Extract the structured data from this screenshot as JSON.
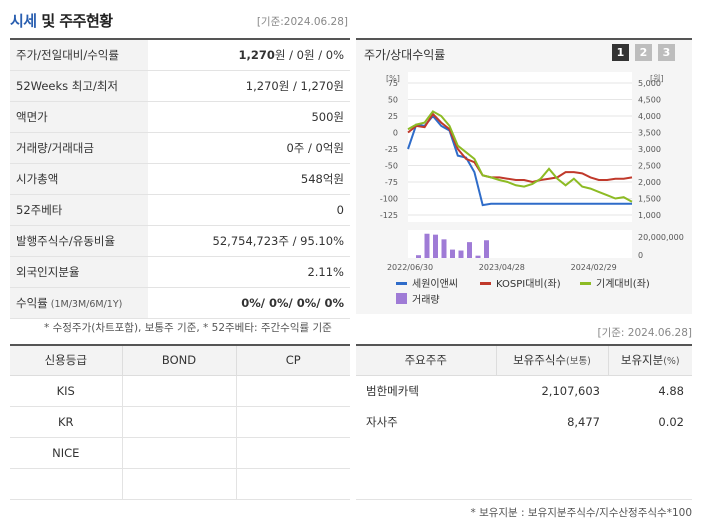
{
  "header": {
    "title_part1": "시세",
    "title_part2": " 및 주주현황",
    "base_date": "[기준:2024.06.28]"
  },
  "price_rows": [
    {
      "label": "주가/전일대비/수익률",
      "value_bold": "1,270",
      "value_rest": "원 / 0원 / 0%"
    },
    {
      "label": "52Weeks 최고/최저",
      "value": "1,270원 / 1,270원"
    },
    {
      "label": "액면가",
      "value": "500원"
    },
    {
      "label": "거래량/거래대금",
      "value": "0주 / 0억원"
    },
    {
      "label": "시가총액",
      "value": "548억원"
    },
    {
      "label": "52주베타",
      "value": "0"
    },
    {
      "label": "발행주식수/유동비율",
      "value": "52,754,723주 / 95.10%"
    },
    {
      "label": "외국인지분율",
      "value": "2.11%"
    },
    {
      "label": "수익률",
      "label_small": " (1M/3M/6M/1Y)",
      "value_bold": "0%/ 0%/ 0%/ 0%",
      "value_rest": ""
    }
  ],
  "note_left": "* 수정주가(차트포함), 보통주 기준, * 52주베타: 주간수익률 기준",
  "chart_panel": {
    "title": "주가/상대수익률",
    "tabs": [
      "1",
      "2",
      "3"
    ],
    "active_tab": "1",
    "left_unit": "[%]",
    "right_unit": "[원]",
    "volume_label": "20,000,000",
    "volume_zero": "0",
    "legend": [
      "세원이앤씨",
      "KOSPI대비(좌)",
      "기계대비(좌)",
      "거래량"
    ]
  },
  "chart_data": {
    "type": "line",
    "x_ticks": [
      "2022/06/30",
      "2023/04/28",
      "2024/02/29"
    ],
    "y_left_ticks": [
      75,
      50,
      25,
      0,
      -25,
      -50,
      -75,
      -100,
      -125
    ],
    "y_left_range": [
      -125,
      75
    ],
    "y_right_ticks": [
      "5,000",
      "4,500",
      "4,000",
      "3,500",
      "3,000",
      "2,500",
      "2,000",
      "1,500",
      "1,000"
    ],
    "y_right_range": [
      1000,
      5000
    ],
    "series": [
      {
        "name": "세원이앤씨",
        "color": "#2f6cc9",
        "values": [
          -25,
          12,
          10,
          25,
          10,
          3,
          -35,
          -38,
          -60,
          -110,
          -108,
          -108,
          -108,
          -108,
          -108,
          -108,
          -108,
          -108,
          -108,
          -108,
          -108,
          -108,
          -108,
          -108,
          -108,
          -108,
          -108,
          -108
        ]
      },
      {
        "name": "KOSPI대비(좌)",
        "color": "#c0392b",
        "values": [
          0,
          10,
          8,
          28,
          15,
          5,
          -25,
          -40,
          -45,
          -65,
          -68,
          -68,
          -70,
          -72,
          -72,
          -75,
          -72,
          -70,
          -68,
          -60,
          -60,
          -62,
          -68,
          -72,
          -72,
          -70,
          -70,
          -68
        ]
      },
      {
        "name": "기계대비(좌)",
        "color": "#8dbb24",
        "values": [
          5,
          12,
          15,
          32,
          25,
          10,
          -20,
          -30,
          -40,
          -65,
          -68,
          -72,
          -75,
          -80,
          -82,
          -78,
          -70,
          -55,
          -70,
          -80,
          -70,
          -82,
          -85,
          -90,
          -95,
          -100,
          -98,
          -105
        ]
      }
    ],
    "volume": {
      "name": "거래량",
      "color": "#9f7bd6",
      "values": [
        3000000,
        26000000,
        25000000,
        20000000,
        9000000,
        8000000,
        17000000,
        2500000,
        19000000
      ]
    }
  },
  "base_date2": "[기준: 2024.06.28]",
  "credit_table": {
    "headers": [
      "신용등급",
      "BOND",
      "CP"
    ],
    "rows": [
      [
        "KIS",
        "",
        ""
      ],
      [
        "KR",
        "",
        ""
      ],
      [
        "NICE",
        "",
        ""
      ],
      [
        "",
        "",
        ""
      ]
    ]
  },
  "holder_table": {
    "headers": [
      "주요주주",
      "보유주식수",
      "(보통)",
      "보유지분",
      "(%)"
    ],
    "rows": [
      {
        "name": "범한메카텍",
        "shares": "2,107,603",
        "pct": "4.88"
      },
      {
        "name": "자사주",
        "shares": "8,477",
        "pct": "0.02"
      }
    ]
  },
  "note_right": "* 보유지분 : 보유지분주식수/지수산정주식수*100"
}
